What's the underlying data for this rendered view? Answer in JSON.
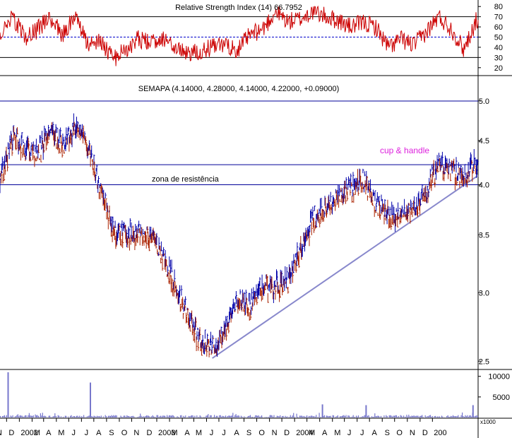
{
  "chart_data": [
    {
      "type": "line",
      "panel": "rsi",
      "title": "Relative Strength Index (14) 66.7952",
      "ylim": [
        15,
        85
      ],
      "y_ticks": [
        20,
        30,
        40,
        50,
        60,
        70,
        80
      ],
      "reference_lines": {
        "upper": 70,
        "lower": 30,
        "middle": 50
      },
      "colors": {
        "line": "#cc0000",
        "bounds": "#000000",
        "middle": "#0000cc"
      },
      "keypoints": {
        "x": [
          "2001-11",
          "2001-12",
          "2002-01",
          "2002-02",
          "2002-03",
          "2002-04",
          "2002-05",
          "2002-06",
          "2002-07",
          "2002-08",
          "2002-09",
          "2002-10",
          "2002-11",
          "2002-12",
          "2003-01",
          "2003-02",
          "2003-03",
          "2003-04",
          "2003-05",
          "2003-06",
          "2003-07",
          "2003-08",
          "2003-09",
          "2003-10",
          "2003-11",
          "2003-12",
          "2004-01",
          "2004-02",
          "2004-03",
          "2004-04",
          "2004-05",
          "2004-06",
          "2004-07",
          "2004-08",
          "2004-09",
          "2004-10",
          "2004-11",
          "2004-12",
          "2005-01"
        ],
        "y": [
          55,
          70,
          48,
          58,
          70,
          52,
          72,
          42,
          48,
          28,
          38,
          48,
          44,
          50,
          38,
          35,
          36,
          40,
          42,
          38,
          52,
          58,
          75,
          65,
          68,
          75,
          70,
          66,
          60,
          64,
          60,
          40,
          48,
          42,
          55,
          70,
          58,
          38,
          66.8
        ]
      }
    },
    {
      "type": "line",
      "panel": "price",
      "title": "SEMAPA (4.14000, 4.28000, 4.14000, 4.22000, +0.09000)",
      "yscale": "log",
      "ylim": [
        2.45,
        5.3
      ],
      "y_ticks": [
        2.5,
        3.0,
        3.5,
        4.0,
        4.5,
        5.0
      ],
      "x_tick_labels": [
        "N",
        "D",
        "2002",
        "M",
        "A",
        "M",
        "J",
        "J",
        "A",
        "S",
        "O",
        "N",
        "D",
        "2003",
        "M",
        "A",
        "M",
        "J",
        "J",
        "A",
        "S",
        "O",
        "N",
        "D",
        "2004",
        "M",
        "A",
        "M",
        "J",
        "J",
        "A",
        "S",
        "O",
        "N",
        "D",
        "200"
      ],
      "last_bar": {
        "open": 4.14,
        "high": 4.28,
        "low": 4.14,
        "close": 4.22,
        "change": 0.09
      },
      "colors": {
        "up_bar": "#0000aa",
        "down_bar": "#aa2200",
        "hlines": "#000099",
        "trendline": "#8888cc"
      },
      "keypoints": {
        "x": [
          "2001-11",
          "2001-12",
          "2002-01",
          "2002-02",
          "2002-03",
          "2002-04",
          "2002-05",
          "2002-06",
          "2002-07",
          "2002-08",
          "2002-09",
          "2002-10",
          "2002-11",
          "2002-12",
          "2003-01",
          "2003-02",
          "2003-03",
          "2003-04",
          "2003-05",
          "2003-06",
          "2003-07",
          "2003-08",
          "2003-09",
          "2003-10",
          "2003-11",
          "2003-12",
          "2004-01",
          "2004-02",
          "2004-03",
          "2004-04",
          "2004-05",
          "2004-06",
          "2004-07",
          "2004-08",
          "2004-09",
          "2004-10",
          "2004-11",
          "2004-12",
          "2005-01"
        ],
        "y": [
          4.05,
          4.55,
          4.4,
          4.35,
          4.65,
          4.45,
          4.65,
          4.45,
          3.95,
          3.55,
          3.5,
          3.5,
          3.5,
          3.3,
          3.05,
          2.8,
          2.65,
          2.6,
          2.7,
          2.95,
          2.9,
          3.05,
          3.05,
          3.1,
          3.35,
          3.65,
          3.75,
          3.9,
          3.95,
          4.05,
          3.8,
          3.7,
          3.7,
          3.75,
          3.95,
          4.2,
          4.15,
          4.1,
          4.22
        ]
      },
      "horizontal_lines": [
        5.0,
        4.22,
        4.0
      ],
      "trendline": {
        "from": {
          "x": "2003-04",
          "y": 2.52
        },
        "to": {
          "x": "2005-01",
          "y": 4.1
        }
      },
      "annotations": {
        "zone": "zona de resistência",
        "cup": "cup & handle"
      }
    },
    {
      "type": "bar",
      "panel": "volume",
      "unit_label": "x1000",
      "ylim": [
        0,
        11500
      ],
      "y_ticks": [
        5000,
        10000
      ],
      "color": "#7777cc",
      "spikes": [
        {
          "x": "2001-12",
          "value": 11000
        },
        {
          "x": "2002-06",
          "value": 8500
        },
        {
          "x": "2004-01",
          "value": 3200
        },
        {
          "x": "2004-04",
          "value": 3000
        },
        {
          "x": "2005-01",
          "value": 3000
        }
      ]
    }
  ]
}
